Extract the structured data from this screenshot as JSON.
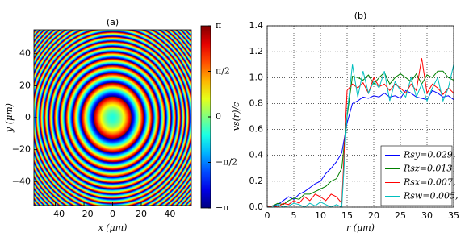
{
  "chart_data": [
    {
      "type": "image",
      "title": "(a)",
      "xlabel": "x (μm)",
      "ylabel": "y (μm)",
      "colormap": "jet",
      "xlim": [
        -55,
        55
      ],
      "ylim": [
        -55,
        55
      ],
      "xticks": [
        {
          "value": -40,
          "label": "−40"
        },
        {
          "value": -20,
          "label": "−20"
        },
        0,
        20,
        40
      ],
      "yticks": [
        {
          "value": -40,
          "label": "−40"
        },
        {
          "value": -20,
          "label": "−20"
        },
        0,
        20,
        40
      ],
      "clim": [
        -3.141592653589793,
        3.141592653589793
      ],
      "cticks": [
        {
          "value": -3.141592653589793,
          "label": "−π"
        },
        {
          "value": -1.5707963267948966,
          "label": "−π/2"
        },
        0,
        {
          "value": 1.5707963267948966,
          "label": "π/2"
        },
        {
          "value": 3.141592653589793,
          "label": "π"
        }
      ]
    },
    {
      "type": "line",
      "title": "(b)",
      "xlabel": "r (μm)",
      "ylabel": "vs(r)/c",
      "x": [
        0,
        1,
        2,
        3,
        4,
        5,
        6,
        7,
        8,
        9,
        10,
        11,
        12,
        13,
        14,
        15,
        16,
        17,
        18,
        19,
        20,
        21,
        22,
        23,
        24,
        25,
        26,
        27,
        28,
        29,
        30,
        31,
        32,
        33,
        34,
        35
      ],
      "xlim": [
        0,
        35
      ],
      "ylim": [
        0,
        1.4
      ],
      "xticks": [
        0,
        5,
        10,
        15,
        20,
        25,
        30,
        35
      ],
      "yticks": [
        {
          "value": 0,
          "label": "0.0"
        },
        0.2,
        0.4,
        0.6,
        0.8,
        {
          "value": 1,
          "label": "1.0"
        },
        1.2,
        1.4
      ],
      "grid": true,
      "legend": "lower right",
      "series": [
        {
          "name": "Rsy=0.029,",
          "color": "#0000ff",
          "values": [
            0,
            0.01,
            0.02,
            0.05,
            0.08,
            0.06,
            0.1,
            0.12,
            0.15,
            0.18,
            0.2,
            0.26,
            0.3,
            0.35,
            0.42,
            0.65,
            0.8,
            0.82,
            0.85,
            0.84,
            0.86,
            0.85,
            0.88,
            0.85,
            0.86,
            0.84,
            0.9,
            0.88,
            0.85,
            0.84,
            0.83,
            0.9,
            0.88,
            0.85,
            0.86,
            0.83
          ]
        },
        {
          "name": "Rsz=0.013,",
          "color": "#008000",
          "values": [
            0,
            0.01,
            0.03,
            0.02,
            0.05,
            0.07,
            0.06,
            0.1,
            0.1,
            0.12,
            0.14,
            0.16,
            0.2,
            0.22,
            0.3,
            0.7,
            1.01,
            1.0,
            0.98,
            1.02,
            0.95,
            1.0,
            1.04,
            0.95,
            1.0,
            1.03,
            1.0,
            0.97,
            1.03,
            0.95,
            1.02,
            1.0,
            1.05,
            1.05,
            1.0,
            0.98
          ]
        },
        {
          "name": "Rsx=0.007,",
          "color": "#ff0000",
          "values": [
            0,
            0.01,
            0,
            0.03,
            0.02,
            0.05,
            0.03,
            0.08,
            0.05,
            0.1,
            0.08,
            0.05,
            0.1,
            0.08,
            0.03,
            0.9,
            0.95,
            0.92,
            0.96,
            0.88,
            1.0,
            0.93,
            0.95,
            0.9,
            0.95,
            0.92,
            0.88,
            0.95,
            0.9,
            1.15,
            0.88,
            0.95,
            0.92,
            0.87,
            0.92,
            0.88
          ]
        },
        {
          "name": "Rsw=0.005,",
          "color": "#00bfbf",
          "values": [
            0,
            0,
            0.02,
            0,
            0.01,
            0.03,
            0.02,
            0,
            0.03,
            0.01,
            0.04,
            0.02,
            0,
            0.02,
            0,
            0.72,
            1.1,
            0.85,
            1.05,
            0.88,
            0.97,
            0.92,
            1.05,
            0.82,
            0.97,
            0.9,
            0.85,
            1.0,
            0.85,
            0.95,
            0.82,
            0.92,
            1.0,
            0.82,
            0.92,
            1.1
          ]
        }
      ]
    }
  ]
}
